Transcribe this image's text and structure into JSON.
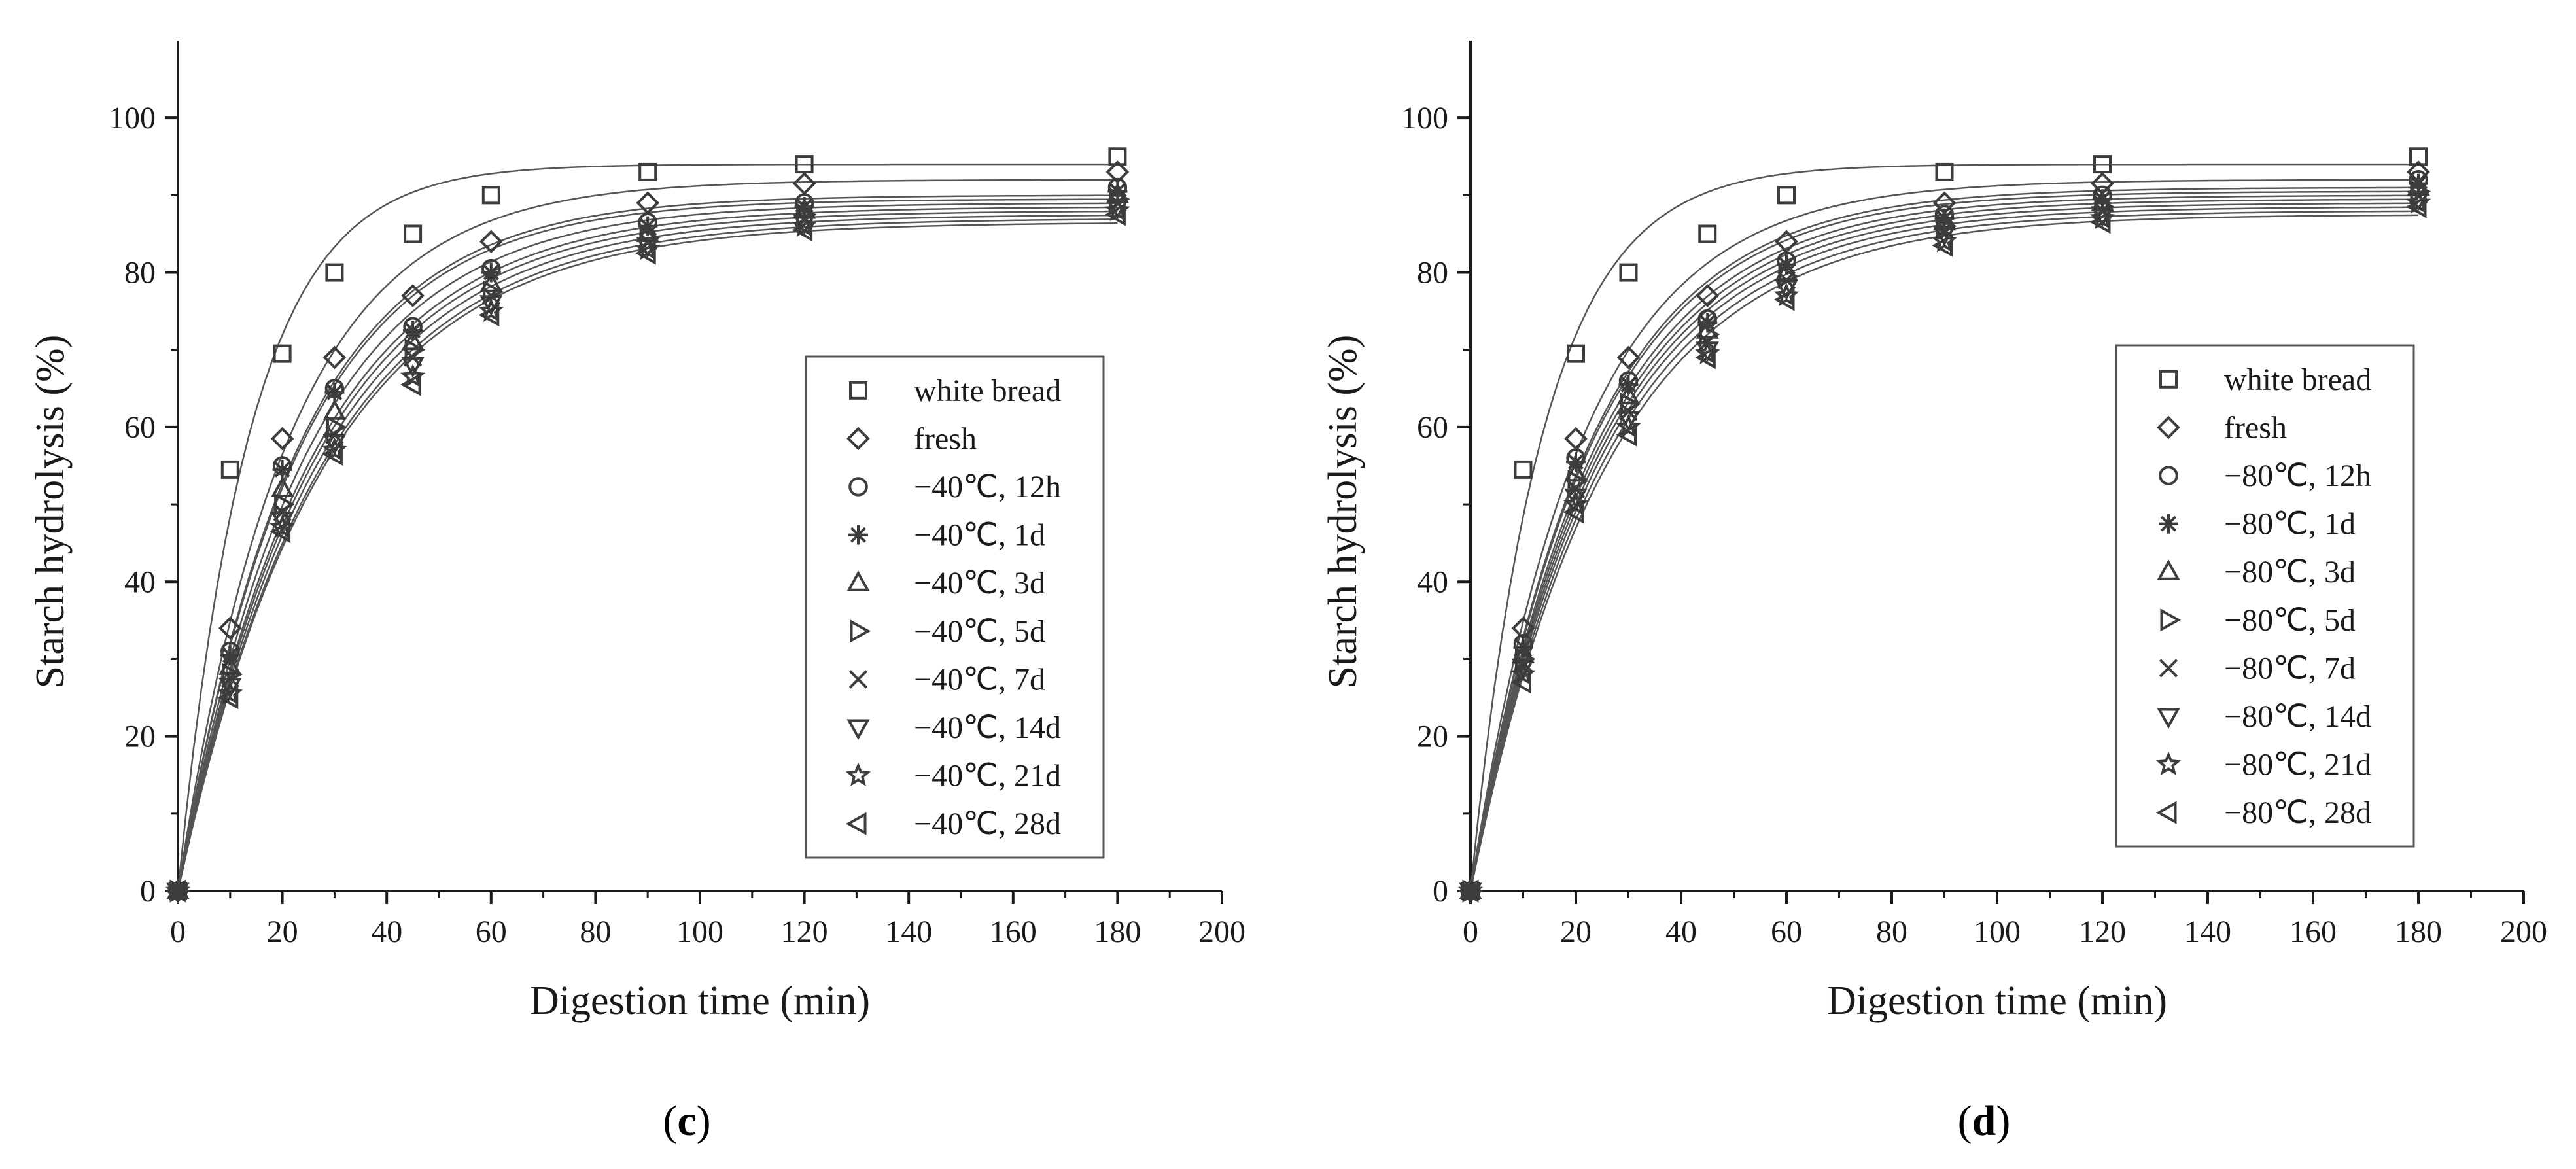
{
  "chart_data": [
    {
      "panel_label": "c",
      "type": "scatter",
      "xlabel": "Digestion time (min)",
      "ylabel": "Starch hydrolysis (%)",
      "xlim": [
        0,
        200
      ],
      "ylim": [
        0,
        110
      ],
      "xticks": [
        0,
        20,
        40,
        60,
        80,
        100,
        120,
        140,
        160,
        180,
        200
      ],
      "yticks": [
        0,
        20,
        40,
        60,
        80,
        100
      ],
      "legend_position": "right",
      "x": [
        0,
        10,
        20,
        30,
        45,
        60,
        90,
        120,
        180
      ],
      "fit": "first-order curves (C∞·(1−e^(−k·t)))",
      "series": [
        {
          "name": "white bread",
          "marker": "square",
          "values": [
            0,
            54.5,
            69.5,
            80,
            85,
            90,
            93,
            94,
            95
          ]
        },
        {
          "name": "fresh",
          "marker": "diamond",
          "values": [
            0,
            34,
            58.5,
            69,
            77,
            84,
            89,
            91.5,
            93
          ]
        },
        {
          "name": "−40℃, 12h",
          "marker": "circle",
          "values": [
            0,
            31,
            55,
            65,
            73,
            80.5,
            86.5,
            89,
            91
          ]
        },
        {
          "name": "−40℃, 1d",
          "marker": "asterisk",
          "values": [
            0,
            30.5,
            54.5,
            64.5,
            72.5,
            80,
            86,
            88.5,
            90.5
          ]
        },
        {
          "name": "−40℃, 3d",
          "marker": "triangle-up",
          "values": [
            0,
            29,
            52,
            62,
            71,
            78.5,
            85,
            88,
            90
          ]
        },
        {
          "name": "−40℃, 5d",
          "marker": "triangle-right",
          "values": [
            0,
            28,
            50,
            60,
            70,
            77.5,
            84.5,
            87.5,
            89.5
          ]
        },
        {
          "name": "−40℃, 7d",
          "marker": "x",
          "values": [
            0,
            27.5,
            49,
            59,
            69,
            77,
            84,
            87,
            89
          ]
        },
        {
          "name": "−40℃, 14d",
          "marker": "triangle-down",
          "values": [
            0,
            26.5,
            48,
            58,
            68,
            76,
            83.5,
            86.5,
            88.5
          ]
        },
        {
          "name": "−40℃, 21d",
          "marker": "star",
          "values": [
            0,
            25.5,
            47,
            57,
            66.5,
            75,
            83,
            86,
            88
          ]
        },
        {
          "name": "−40℃, 28d",
          "marker": "triangle-left",
          "values": [
            0,
            25,
            46.5,
            56.5,
            65.5,
            74.5,
            82.5,
            85.5,
            87.5
          ]
        }
      ]
    },
    {
      "panel_label": "d",
      "type": "scatter",
      "xlabel": "Digestion time (min)",
      "ylabel": "Starch hydrolysis (%)",
      "xlim": [
        0,
        200
      ],
      "ylim": [
        0,
        110
      ],
      "xticks": [
        0,
        20,
        40,
        60,
        80,
        100,
        120,
        140,
        160,
        180,
        200
      ],
      "yticks": [
        0,
        20,
        40,
        60,
        80,
        100
      ],
      "legend_position": "right",
      "x": [
        0,
        10,
        20,
        30,
        45,
        60,
        90,
        120,
        180
      ],
      "fit": "first-order curves (C∞·(1−e^(−k·t)))",
      "series": [
        {
          "name": "white bread",
          "marker": "square",
          "values": [
            0,
            54.5,
            69.5,
            80,
            85,
            90,
            93,
            94,
            95
          ]
        },
        {
          "name": "fresh",
          "marker": "diamond",
          "values": [
            0,
            34,
            58.5,
            69,
            77,
            84,
            89,
            91.5,
            93
          ]
        },
        {
          "name": "−80℃, 12h",
          "marker": "circle",
          "values": [
            0,
            32,
            56,
            66,
            74,
            81.5,
            87.5,
            90,
            92
          ]
        },
        {
          "name": "−80℃, 1d",
          "marker": "asterisk",
          "values": [
            0,
            31.5,
            55.5,
            65.5,
            73.5,
            81,
            87,
            89.5,
            91.5
          ]
        },
        {
          "name": "−80℃, 3d",
          "marker": "triangle-up",
          "values": [
            0,
            30.5,
            54,
            64,
            72.5,
            80,
            86.5,
            89,
            91
          ]
        },
        {
          "name": "−80℃, 5d",
          "marker": "triangle-right",
          "values": [
            0,
            30,
            53,
            63,
            72,
            79.5,
            86,
            88.5,
            90.5
          ]
        },
        {
          "name": "−80℃, 7d",
          "marker": "x",
          "values": [
            0,
            29.5,
            52,
            62,
            71,
            79,
            85.5,
            88,
            90
          ]
        },
        {
          "name": "−80℃, 14d",
          "marker": "triangle-down",
          "values": [
            0,
            29,
            51,
            61,
            70,
            78,
            85,
            87.5,
            89.5
          ]
        },
        {
          "name": "−80℃, 21d",
          "marker": "star",
          "values": [
            0,
            28,
            50,
            60,
            69.5,
            77,
            84,
            87,
            89
          ]
        },
        {
          "name": "−80℃, 28d",
          "marker": "triangle-left",
          "values": [
            0,
            27,
            49,
            59,
            69,
            76.5,
            83.5,
            86.5,
            88.5
          ]
        }
      ]
    }
  ]
}
